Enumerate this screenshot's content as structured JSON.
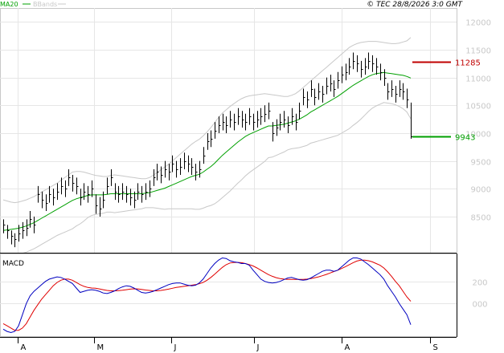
{
  "legend": {
    "ma_label": "MA20",
    "bb_label": "BBands",
    "ma_color": "#00a000",
    "bb_color": "#c8c8c8"
  },
  "copyright": "© TEC 28/8/2026 3:0 GMT",
  "chart_data": [
    {
      "type": "line",
      "title": "",
      "xlabel": "",
      "ylabel": "",
      "x_tick_labels": [
        "A",
        "M",
        "J",
        "J",
        "A",
        "S"
      ],
      "y_tick_labels": [
        "12000",
        "11500",
        "11000",
        "10500",
        "10000",
        "9500",
        "9000",
        "8500"
      ],
      "ylim": [
        7850,
        12250
      ],
      "grid": true,
      "price_bars": {
        "color": "#000000",
        "close": [
          8350,
          8250,
          8150,
          8100,
          8200,
          8250,
          8300,
          8450,
          8350,
          8900,
          8800,
          8750,
          8900,
          8850,
          8950,
          9050,
          9000,
          9200,
          9100,
          9050,
          8850,
          8950,
          8900,
          9000,
          8700,
          8650,
          8800,
          9050,
          9200,
          8950,
          8900,
          8950,
          8900,
          8850,
          8800,
          8950,
          8900,
          8950,
          9000,
          9200,
          9300,
          9250,
          9350,
          9300,
          9450,
          9350,
          9400,
          9500,
          9450,
          9400,
          9300,
          9350,
          9600,
          9850,
          9900,
          10050,
          10150,
          10200,
          10150,
          10250,
          10200,
          10300,
          10250,
          10200,
          10300,
          10200,
          10250,
          10300,
          10350,
          10400,
          10000,
          10100,
          10200,
          10250,
          10150,
          10300,
          10200,
          10400,
          10650,
          10600,
          10800,
          10650,
          10750,
          10700,
          10850,
          10900,
          10800,
          10950,
          11050,
          11100,
          11200,
          11300,
          11250,
          11150,
          11200,
          11300,
          11250,
          11200,
          11100,
          11000,
          10750,
          10800,
          10700,
          10800,
          10750,
          10600,
          9943
        ],
        "high": [
          8450,
          8350,
          8250,
          8200,
          8350,
          8400,
          8450,
          8600,
          8500,
          9050,
          8950,
          8900,
          9050,
          9000,
          9100,
          9200,
          9150,
          9350,
          9250,
          9200,
          9000,
          9100,
          9050,
          9150,
          8900,
          8850,
          8950,
          9200,
          9350,
          9100,
          9050,
          9100,
          9050,
          9000,
          8950,
          9100,
          9050,
          9100,
          9150,
          9350,
          9450,
          9400,
          9500,
          9450,
          9600,
          9500,
          9550,
          9650,
          9600,
          9550,
          9450,
          9500,
          9750,
          10000,
          10050,
          10200,
          10300,
          10350,
          10300,
          10400,
          10350,
          10450,
          10400,
          10350,
          10450,
          10350,
          10400,
          10450,
          10500,
          10550,
          10200,
          10250,
          10350,
          10400,
          10300,
          10450,
          10350,
          10550,
          10800,
          10750,
          10950,
          10800,
          10900,
          10850,
          11000,
          11050,
          10950,
          11100,
          11200,
          11250,
          11350,
          11450,
          11400,
          11300,
          11350,
          11450,
          11400,
          11350,
          11250,
          11150,
          10900,
          10950,
          10850,
          10950,
          10900,
          10800,
          10550
        ],
        "low": [
          8200,
          8100,
          8000,
          7950,
          8050,
          8100,
          8150,
          8300,
          8200,
          8750,
          8650,
          8600,
          8750,
          8700,
          8800,
          8900,
          8850,
          9050,
          8950,
          8900,
          8700,
          8800,
          8750,
          8850,
          8550,
          8500,
          8650,
          8900,
          9050,
          8800,
          8750,
          8800,
          8750,
          8700,
          8650,
          8800,
          8750,
          8800,
          8850,
          9050,
          9150,
          9100,
          9200,
          9150,
          9300,
          9200,
          9250,
          9350,
          9300,
          9250,
          9150,
          9200,
          9450,
          9700,
          9750,
          9900,
          10000,
          10050,
          10000,
          10100,
          10050,
          10150,
          10100,
          10050,
          10150,
          10050,
          10100,
          10150,
          10200,
          10250,
          9850,
          9950,
          10050,
          10100,
          10000,
          10150,
          10050,
          10250,
          10500,
          10450,
          10650,
          10500,
          10600,
          10550,
          10700,
          10750,
          10650,
          10800,
          10900,
          10950,
          11050,
          11150,
          11100,
          11000,
          11050,
          11150,
          11100,
          11050,
          10950,
          10850,
          10600,
          10650,
          10550,
          10650,
          10600,
          10450,
          9900
        ]
      },
      "series": [
        {
          "name": "MA20",
          "color": "#00a000",
          "values": [
            8250,
            8260,
            8270,
            8280,
            8290,
            8310,
            8330,
            8360,
            8390,
            8430,
            8470,
            8510,
            8550,
            8590,
            8630,
            8670,
            8710,
            8750,
            8790,
            8820,
            8840,
            8860,
            8880,
            8890,
            8890,
            8890,
            8890,
            8900,
            8910,
            8910,
            8910,
            8910,
            8910,
            8910,
            8910,
            8910,
            8910,
            8920,
            8930,
            8950,
            8970,
            8990,
            9010,
            9040,
            9070,
            9100,
            9130,
            9160,
            9190,
            9220,
            9240,
            9260,
            9300,
            9350,
            9400,
            9460,
            9530,
            9600,
            9660,
            9720,
            9780,
            9840,
            9890,
            9940,
            9980,
            10010,
            10040,
            10070,
            10100,
            10130,
            10130,
            10140,
            10150,
            10160,
            10180,
            10200,
            10220,
            10250,
            10290,
            10330,
            10380,
            10420,
            10460,
            10500,
            10540,
            10580,
            10620,
            10660,
            10710,
            10760,
            10810,
            10860,
            10900,
            10940,
            10980,
            11020,
            11050,
            11070,
            11080,
            11090,
            11080,
            11070,
            11060,
            11050,
            11040,
            11020,
            10990
          ]
        },
        {
          "name": "BBands upper",
          "color": "#c8c8c8",
          "values": [
            8800,
            8780,
            8760,
            8750,
            8760,
            8780,
            8800,
            8830,
            8860,
            8900,
            8940,
            8980,
            9020,
            9060,
            9100,
            9150,
            9200,
            9250,
            9300,
            9310,
            9310,
            9300,
            9280,
            9260,
            9240,
            9230,
            9220,
            9220,
            9240,
            9250,
            9240,
            9230,
            9220,
            9210,
            9200,
            9190,
            9180,
            9180,
            9200,
            9240,
            9290,
            9340,
            9390,
            9440,
            9500,
            9560,
            9620,
            9680,
            9740,
            9800,
            9850,
            9890,
            9950,
            10020,
            10100,
            10190,
            10280,
            10360,
            10420,
            10480,
            10530,
            10580,
            10620,
            10650,
            10670,
            10680,
            10690,
            10700,
            10710,
            10700,
            10690,
            10680,
            10670,
            10660,
            10660,
            10680,
            10710,
            10760,
            10820,
            10880,
            10940,
            11000,
            11060,
            11120,
            11180,
            11240,
            11300,
            11360,
            11420,
            11480,
            11540,
            11580,
            11610,
            11630,
            11640,
            11650,
            11650,
            11650,
            11640,
            11630,
            11620,
            11610,
            11610,
            11620,
            11640,
            11660,
            11720
          ]
        },
        {
          "name": "BBands lower",
          "color": "#c8c8c8",
          "values": [
            7700,
            7740,
            7780,
            7810,
            7820,
            7840,
            7860,
            7890,
            7920,
            7960,
            8000,
            8040,
            8080,
            8120,
            8160,
            8190,
            8220,
            8250,
            8280,
            8330,
            8370,
            8420,
            8480,
            8520,
            8540,
            8550,
            8560,
            8580,
            8580,
            8570,
            8580,
            8590,
            8600,
            8610,
            8620,
            8630,
            8640,
            8660,
            8660,
            8660,
            8650,
            8640,
            8630,
            8640,
            8640,
            8640,
            8640,
            8640,
            8640,
            8640,
            8630,
            8630,
            8650,
            8680,
            8700,
            8730,
            8780,
            8840,
            8900,
            8960,
            9030,
            9100,
            9160,
            9230,
            9290,
            9340,
            9390,
            9440,
            9490,
            9560,
            9570,
            9600,
            9630,
            9660,
            9700,
            9720,
            9730,
            9740,
            9760,
            9780,
            9820,
            9840,
            9860,
            9880,
            9900,
            9920,
            9940,
            9960,
            10000,
            10040,
            10080,
            10140,
            10190,
            10250,
            10320,
            10390,
            10450,
            10490,
            10520,
            10550,
            10540,
            10530,
            10510,
            10480,
            10440,
            10380,
            10260
          ]
        }
      ],
      "levels": [
        {
          "label": "11285",
          "value": 11285,
          "color": "#c00000"
        },
        {
          "label": "9943",
          "value": 9943,
          "color": "#00a000"
        }
      ]
    },
    {
      "type": "line",
      "title": "MACD",
      "xlabel": "",
      "ylabel": "",
      "y_tick_labels": [
        "200",
        "000"
      ],
      "ylim": [
        -300,
        450
      ],
      "grid": true,
      "series": [
        {
          "name": "MACD",
          "color": "#0000c0",
          "values": [
            -230,
            -250,
            -260,
            -250,
            -200,
            -100,
            0,
            70,
            110,
            140,
            170,
            200,
            220,
            230,
            240,
            235,
            220,
            200,
            180,
            140,
            100,
            110,
            120,
            125,
            120,
            110,
            95,
            90,
            100,
            115,
            135,
            150,
            160,
            155,
            140,
            120,
            100,
            95,
            100,
            110,
            125,
            140,
            155,
            170,
            180,
            185,
            185,
            175,
            165,
            160,
            165,
            185,
            220,
            270,
            320,
            360,
            390,
            410,
            405,
            385,
            375,
            370,
            360,
            360,
            345,
            300,
            260,
            220,
            200,
            190,
            185,
            190,
            200,
            215,
            230,
            235,
            225,
            215,
            210,
            215,
            230,
            250,
            270,
            290,
            300,
            300,
            290,
            300,
            330,
            360,
            390,
            410,
            410,
            400,
            375,
            350,
            320,
            290,
            260,
            220,
            160,
            110,
            60,
            0,
            -50,
            -100,
            -190
          ]
        },
        {
          "name": "Signal",
          "color": "#e00000",
          "values": [
            -180,
            -200,
            -220,
            -240,
            -240,
            -220,
            -180,
            -120,
            -60,
            -10,
            40,
            80,
            120,
            160,
            190,
            210,
            220,
            220,
            210,
            190,
            170,
            155,
            145,
            140,
            138,
            132,
            125,
            118,
            115,
            115,
            117,
            120,
            125,
            130,
            133,
            132,
            128,
            122,
            118,
            115,
            115,
            118,
            123,
            130,
            138,
            145,
            150,
            155,
            160,
            165,
            170,
            178,
            190,
            210,
            235,
            265,
            295,
            325,
            350,
            365,
            370,
            370,
            368,
            360,
            350,
            338,
            320,
            300,
            280,
            260,
            245,
            233,
            225,
            220,
            218,
            218,
            218,
            218,
            218,
            220,
            225,
            232,
            240,
            250,
            262,
            275,
            288,
            300,
            315,
            332,
            350,
            368,
            382,
            390,
            390,
            385,
            375,
            360,
            345,
            320,
            285,
            245,
            200,
            160,
            110,
            60,
            20
          ]
        }
      ]
    }
  ]
}
